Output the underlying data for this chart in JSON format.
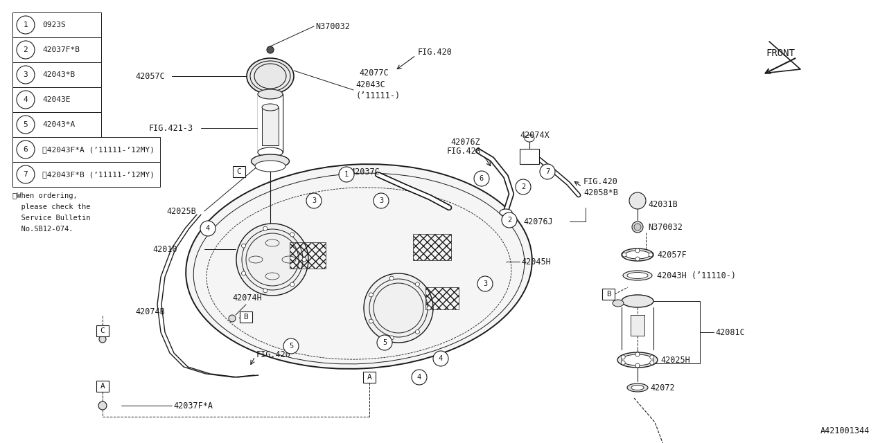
{
  "bg_color": "#ffffff",
  "line_color": "#1a1a1a",
  "diagram_id": "A421001344",
  "legend_items": [
    {
      "num": "1",
      "part": "0923S",
      "wide": false
    },
    {
      "num": "2",
      "part": "42037F*B",
      "wide": false
    },
    {
      "num": "3",
      "part": "42043*B",
      "wide": false
    },
    {
      "num": "4",
      "part": "42043E",
      "wide": false
    },
    {
      "num": "5",
      "part": "42043*A",
      "wide": false
    },
    {
      "num": "6",
      "part": "※42043F*A (’11111-’12MY)",
      "wide": true
    },
    {
      "num": "7",
      "part": "※42043F*B (’11111-’12MY)",
      "wide": true
    }
  ],
  "note_lines": [
    "※When ordering,",
    "  please check the",
    "  Service Bulletin",
    "  No.SB12-074."
  ]
}
